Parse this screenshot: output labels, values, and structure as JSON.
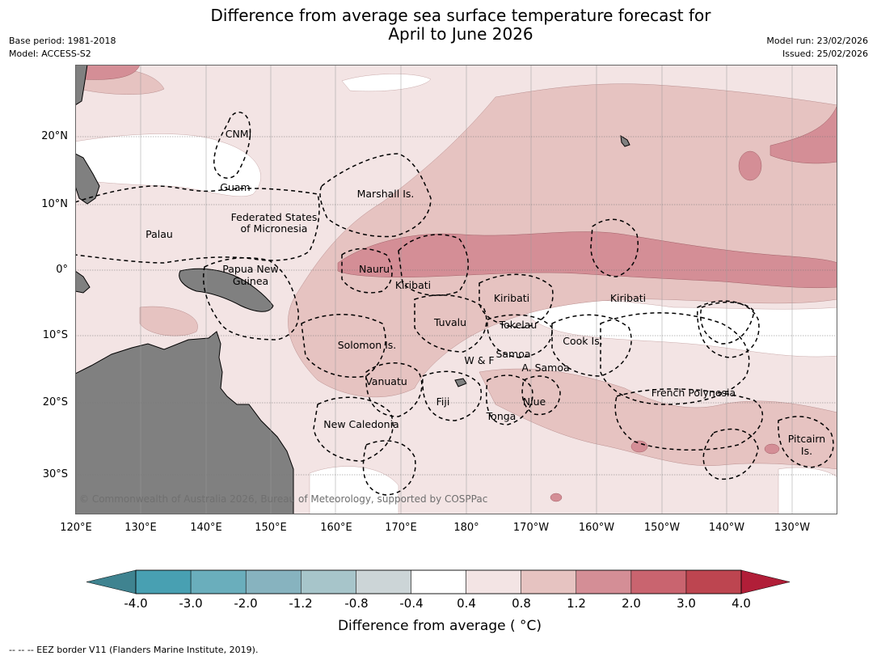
{
  "title_line1": "Difference from average sea surface temperature forecast for",
  "title_line2": "April to June 2026",
  "meta_left": {
    "base_period": "Base period: 1981-2018",
    "model": "Model: ACCESS-S2"
  },
  "meta_right": {
    "model_run": "Model run: 23/02/2026",
    "issued": "Issued: 25/02/2026"
  },
  "lat_ticks": [
    "20°N",
    "10°N",
    "0°",
    "10°S",
    "20°S",
    "30°S"
  ],
  "lon_ticks": [
    "120°E",
    "130°E",
    "140°E",
    "150°E",
    "160°E",
    "170°E",
    "180°",
    "170°W",
    "160°W",
    "150°W",
    "140°W",
    "130°W"
  ],
  "regions": {
    "cnmi": "CNMI",
    "guam": "Guam",
    "marshall": "Marshall Is.",
    "fsm_1": "Federated States",
    "fsm_2": "of Micronesia",
    "palau": "Palau",
    "png_1": "Papua New",
    "png_2": "Guinea",
    "nauru": "Nauru",
    "kiribati_w": "Kiribati",
    "kiribati_c": "Kiribati",
    "kiribati_e": "Kiribati",
    "tuvalu": "Tuvalu",
    "tokelau": "Tokelau",
    "solomon": "Solomon Is.",
    "cook": "Cook Is.",
    "samoa": "Samoa",
    "wf": "W & F",
    "asamoa": "A. Samoa",
    "vanuatu": "Vanuatu",
    "fiji": "Fiji",
    "niue": "Niue",
    "tonga": "Tonga",
    "frpoly": "French Polynesia",
    "newcal": "New Caledonia",
    "pitcairn_1": "Pitcairn",
    "pitcairn_2": "Is."
  },
  "copyright": "© Commonwealth of Australia 2026, Bureau of Meteorology, supported by COSPPac",
  "colorbar": {
    "labels": [
      "-4.0",
      "-3.0",
      "-2.0",
      "-1.2",
      "-0.8",
      "-0.4",
      "0.4",
      "0.8",
      "1.2",
      "2.0",
      "3.0",
      "4.0"
    ],
    "colors": [
      "#3f8390",
      "#48a0b2",
      "#6aaebc",
      "#87b3bf",
      "#a7c5ca",
      "#ccd5d7",
      "#ffffff",
      "#f3e4e4",
      "#e6c3c1",
      "#d48e96",
      "#c9646f",
      "#bd4550",
      "#b11e38"
    ],
    "title": "Difference from average ( °C)"
  },
  "colors": {
    "land": "#808080",
    "anom_08_12": "#e6c3c1",
    "anom_12_20": "#d48e96",
    "anom_04_08": "#f3e4e4",
    "neutral": "#ffffff"
  },
  "footnote": "--  --  -- EEZ border V11 (Flanders Marine Institute, 2019)."
}
